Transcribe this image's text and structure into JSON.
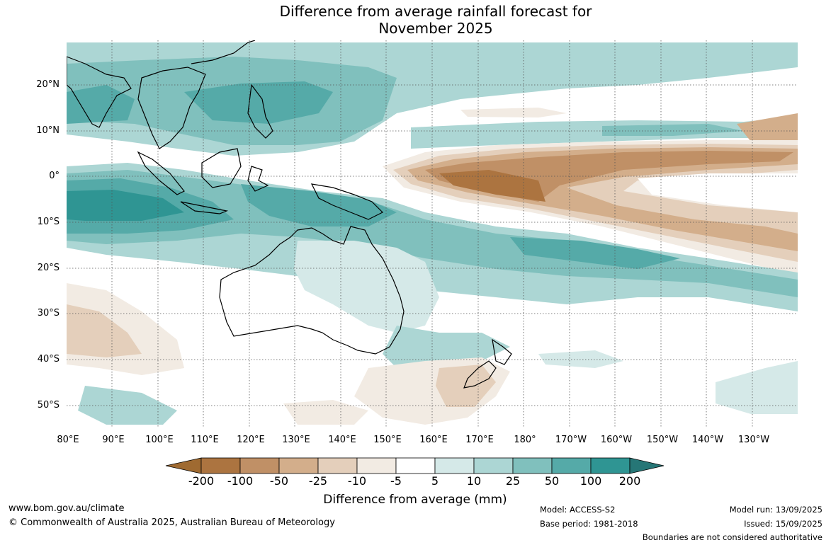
{
  "title_line1": "Difference from average rainfall forecast for",
  "title_line2": "November 2025",
  "lat_labels": [
    "20°N",
    "10°N",
    "0°",
    "10°S",
    "20°S",
    "30°S",
    "40°S",
    "50°S"
  ],
  "lon_labels": [
    "80°E",
    "90°E",
    "100°E",
    "110°E",
    "120°E",
    "130°E",
    "140°E",
    "150°E",
    "160°E",
    "170°E",
    "180°",
    "170°W",
    "160°W",
    "150°W",
    "140°W",
    "130°W"
  ],
  "colorbar": {
    "labels": [
      "-200",
      "-100",
      "-50",
      "-25",
      "-10",
      "-5",
      "5",
      "10",
      "25",
      "50",
      "100",
      "200"
    ],
    "colors": [
      "#9f6a31",
      "#ac7440",
      "#c09066",
      "#d3ae8b",
      "#e4cfbb",
      "#f2ebe3",
      "#ffffff",
      "#d5e9e8",
      "#acd6d4",
      "#80c0bd",
      "#55aaa8",
      "#2f9593",
      "#267676"
    ],
    "title": "Difference from average (mm)"
  },
  "footer": {
    "website": "www.bom.gov.au/climate",
    "copyright": "© Commonwealth of Australia 2025, Australian Bureau of Meteorology",
    "model": "Model: ACCESS-S2",
    "base_period": "Base period: 1981-2018",
    "model_run": "Model run: 13/09/2025",
    "issued": "Issued: 15/09/2025",
    "disclaimer": "Boundaries are not considered authoritative"
  }
}
